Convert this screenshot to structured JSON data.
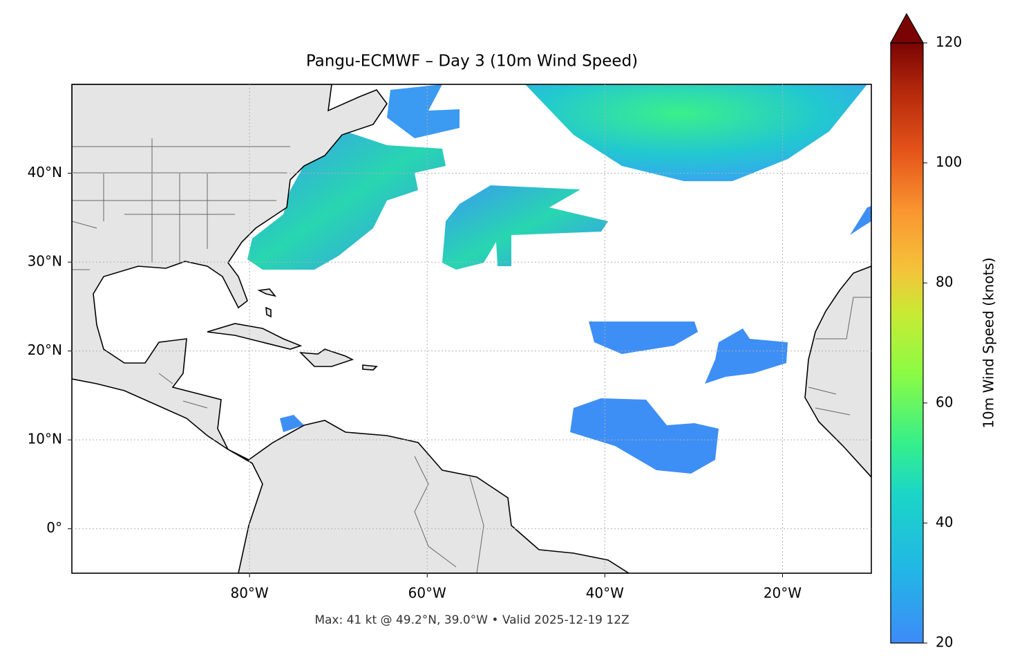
{
  "chart_data": {
    "type": "map",
    "title": "Pangu-ECMWF – Day 3 (10m Wind Speed)",
    "footer": "Max: 41 kt @ 49.2°N, 39.0°W • Valid 2025-12-19 12Z",
    "xlim": [
      -100,
      -10
    ],
    "ylim": [
      -5,
      50
    ],
    "xticks": [
      {
        "value": -80,
        "label": "80°W"
      },
      {
        "value": -60,
        "label": "60°W"
      },
      {
        "value": -40,
        "label": "40°W"
      },
      {
        "value": -20,
        "label": "20°W"
      }
    ],
    "yticks": [
      {
        "value": 0,
        "label": "0°"
      },
      {
        "value": 10,
        "label": "10°N"
      },
      {
        "value": 20,
        "label": "20°N"
      },
      {
        "value": 30,
        "label": "30°N"
      },
      {
        "value": 40,
        "label": "40°N"
      }
    ],
    "grid": true,
    "colorbar": {
      "label": "10m Wind Speed (knots)",
      "lim": [
        20,
        120
      ],
      "ticks": [
        20,
        40,
        60,
        80,
        100,
        120
      ]
    }
  }
}
